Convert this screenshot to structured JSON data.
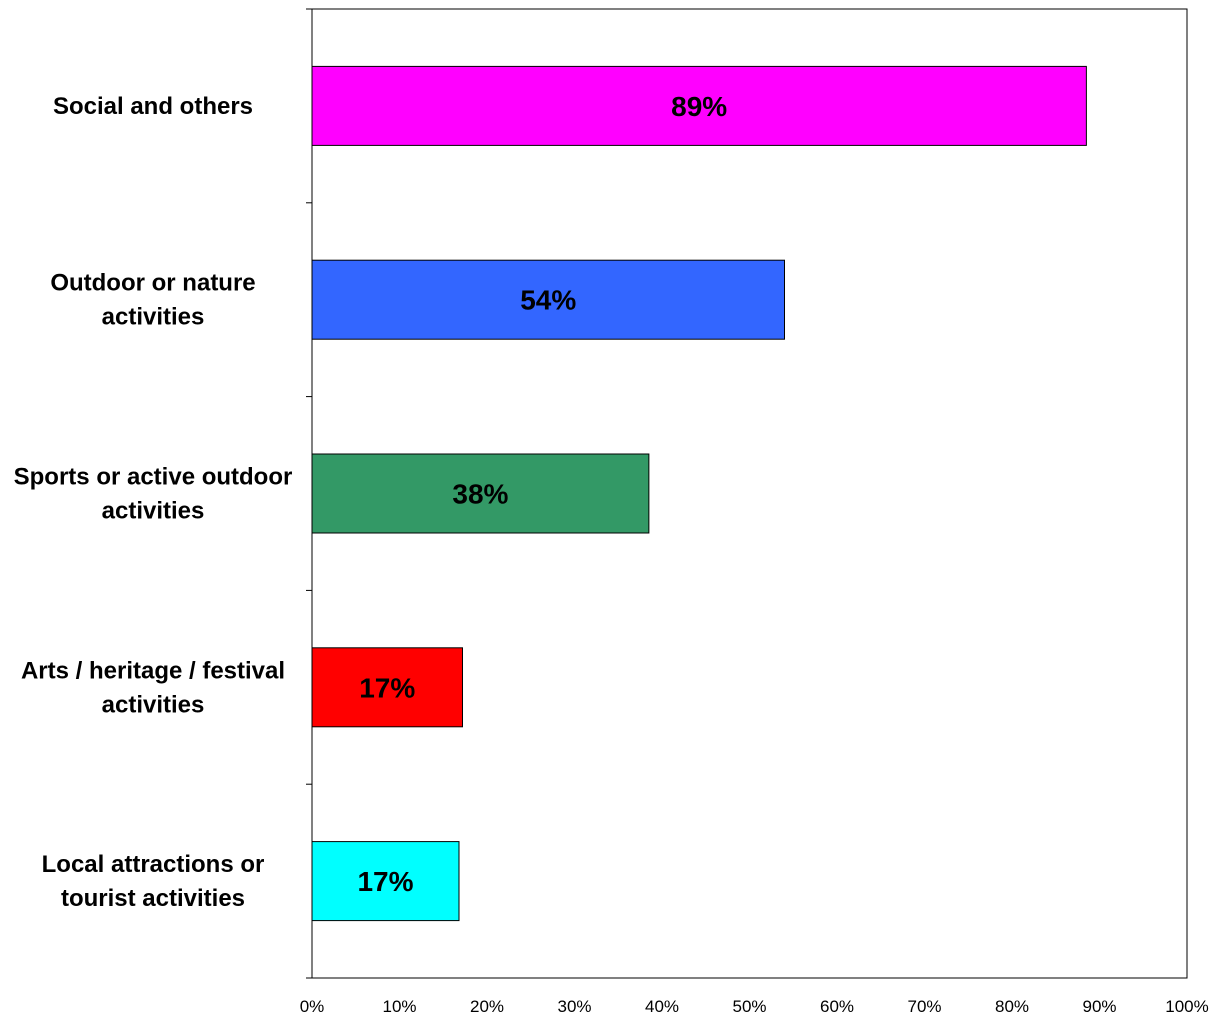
{
  "chart_data": {
    "type": "bar",
    "orientation": "horizontal",
    "categories": [
      "Social and others",
      "Outdoor or nature activities",
      "Sports or active outdoor activities",
      "Arts / heritage /  festival activities",
      "Local attractions or tourist activities"
    ],
    "category_lines": [
      [
        "Social and others"
      ],
      [
        "Outdoor or nature",
        "activities"
      ],
      [
        "Sports or active outdoor",
        "activities"
      ],
      [
        "Arts / heritage /  festival",
        "activities"
      ],
      [
        "Local attractions or",
        "tourist activities"
      ]
    ],
    "values": [
      88.5,
      54,
      38.5,
      17.2,
      16.8
    ],
    "data_labels": [
      "89%",
      "54%",
      "38%",
      "17%",
      "17%"
    ],
    "colors": [
      "#ff00ff",
      "#3366ff",
      "#339966",
      "#ff0000",
      "#00ffff"
    ],
    "xlim": [
      0,
      100
    ],
    "xticks": [
      0,
      10,
      20,
      30,
      40,
      50,
      60,
      70,
      80,
      90,
      100
    ],
    "xtick_labels": [
      "0%",
      "10%",
      "20%",
      "30%",
      "40%",
      "50%",
      "60%",
      "70%",
      "80%",
      "90%",
      "100%"
    ],
    "title": "",
    "xlabel": "",
    "ylabel": "",
    "grid": false,
    "legend": "none"
  }
}
